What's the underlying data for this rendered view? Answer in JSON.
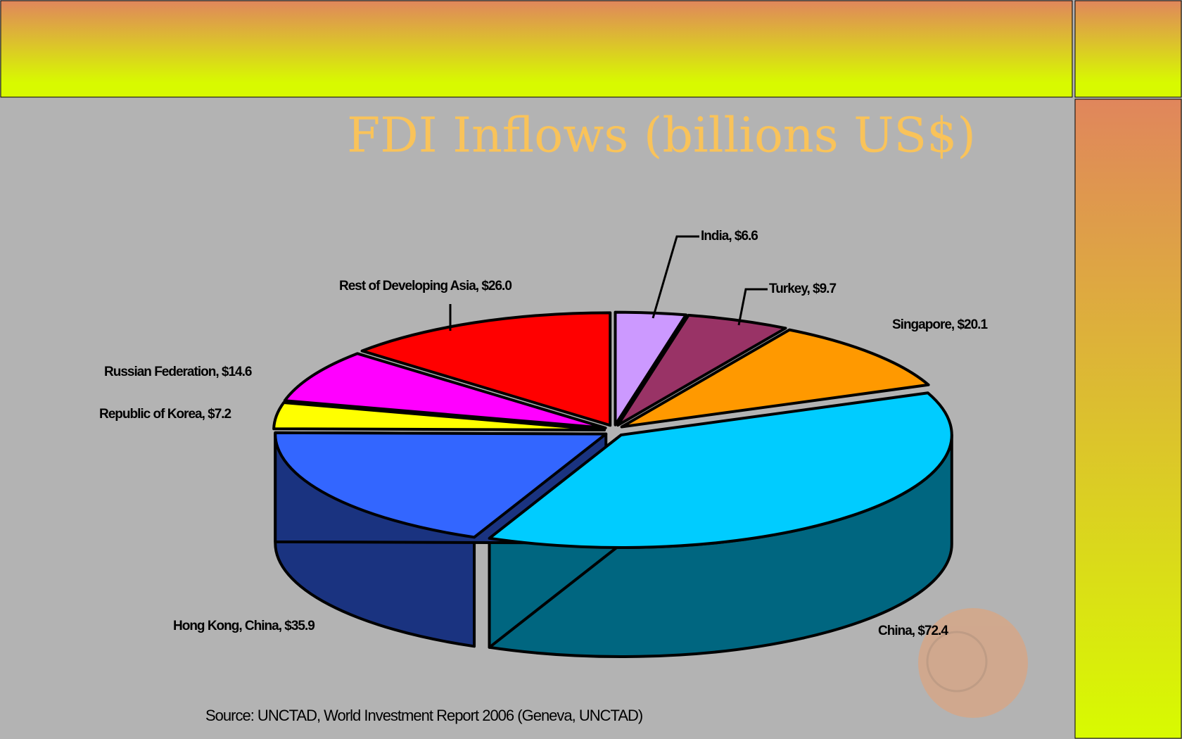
{
  "chart_data": {
    "type": "pie3d",
    "title": "FDI Inflows (billions US$)",
    "categories": [
      "India",
      "Turkey",
      "Singapore",
      "China",
      "Hong Kong, China",
      "Republic of Korea",
      "Russian Federation",
      "Rest of Developing Asia"
    ],
    "values": [
      6.6,
      9.7,
      20.1,
      72.4,
      35.9,
      7.2,
      14.6,
      26.0
    ],
    "value_labels": [
      "India, $6.6",
      "Turkey, $9.7",
      "Singapore, $20.1",
      "China, $72.4",
      "Hong Kong, China, $35.9",
      "Republic of Korea, $7.2",
      "Russian Federation, $14.6",
      "Rest of Developing Asia, $26.0"
    ],
    "colors": [
      "#cc99ff",
      "#993366",
      "#ff9900",
      "#00ccff",
      "#3366ff",
      "#ffff00",
      "#ff00ff",
      "#ff0000"
    ],
    "source": "Source: UNCTAD, World Investment Report 2006 (Geneva, UNCTAD)"
  }
}
